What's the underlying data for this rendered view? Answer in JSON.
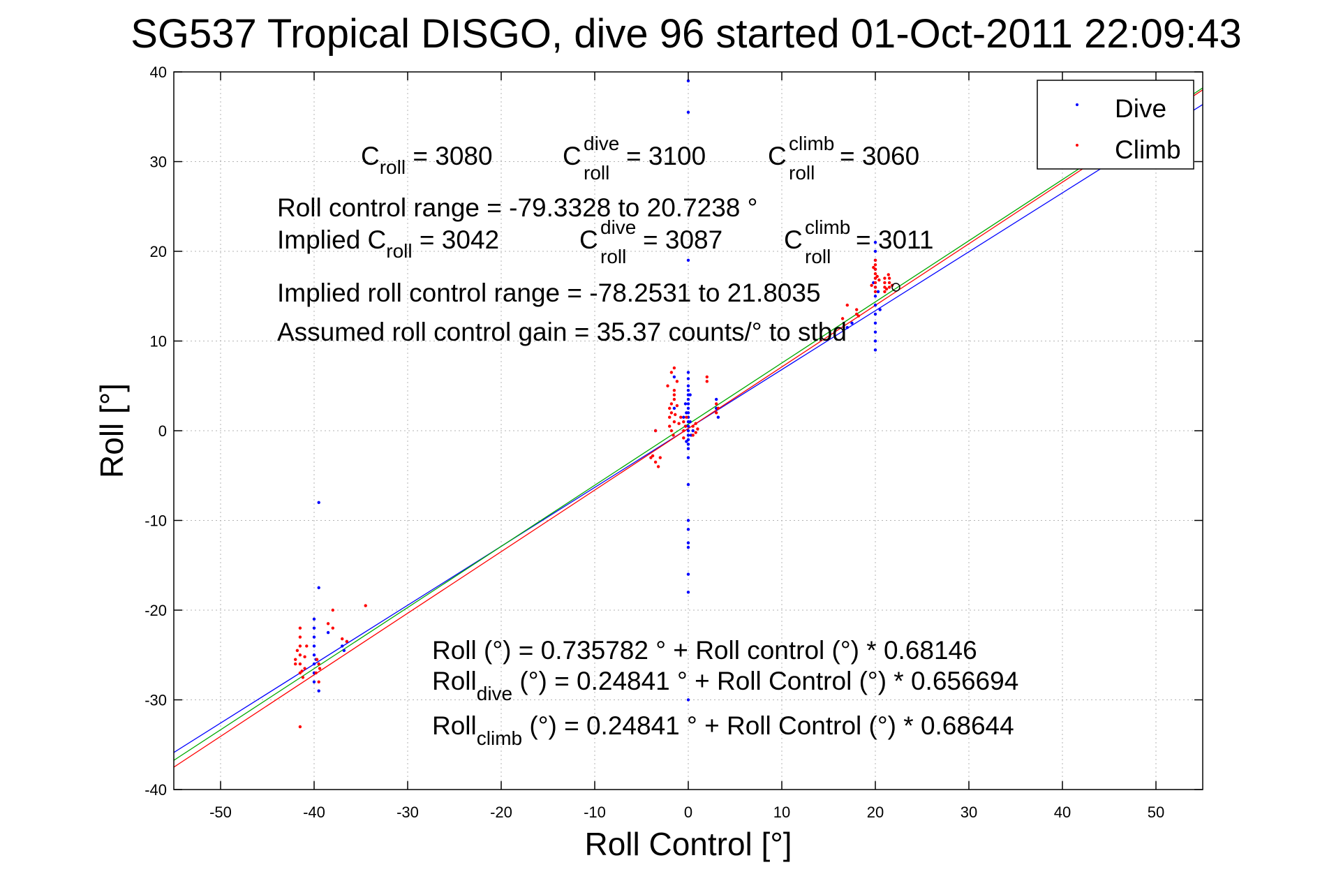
{
  "chart_data": {
    "type": "scatter",
    "title": "SG537 Tropical DISGO, dive 96 started 01-Oct-2011 22:09:43",
    "xlabel": "Roll Control [°]",
    "ylabel": "Roll [°]",
    "xlim": [
      -55,
      55
    ],
    "ylim": [
      -40,
      40
    ],
    "xticks": [
      -50,
      -40,
      -30,
      -20,
      -10,
      0,
      10,
      20,
      30,
      40,
      50
    ],
    "yticks": [
      -40,
      -30,
      -20,
      -10,
      0,
      10,
      20,
      30,
      40
    ],
    "grid": true,
    "legend_position": "top-right",
    "legend": [
      {
        "label": "Dive",
        "color": "#0000ff"
      },
      {
        "label": "Climb",
        "color": "#ff0000"
      }
    ],
    "series": [
      {
        "name": "Dive",
        "color": "#0000ff",
        "points": [
          [
            0,
            39
          ],
          [
            0,
            35.5
          ],
          [
            0,
            19
          ],
          [
            0,
            6.5
          ],
          [
            0,
            5.8
          ],
          [
            0,
            5
          ],
          [
            0,
            4.5
          ],
          [
            0,
            4
          ],
          [
            0,
            3.5
          ],
          [
            0,
            3
          ],
          [
            0,
            2.5
          ],
          [
            0,
            2
          ],
          [
            0,
            1.5
          ],
          [
            0,
            1
          ],
          [
            0,
            0.5
          ],
          [
            0,
            0
          ],
          [
            0,
            -0.5
          ],
          [
            0,
            -1
          ],
          [
            0,
            -1.5
          ],
          [
            0,
            -2
          ],
          [
            0,
            -3
          ],
          [
            0,
            -6
          ],
          [
            0,
            -10
          ],
          [
            0,
            -11
          ],
          [
            0,
            -12.5
          ],
          [
            0,
            -13
          ],
          [
            0,
            -16
          ],
          [
            0,
            -18
          ],
          [
            0,
            -30
          ],
          [
            -0.2,
            2
          ],
          [
            0.2,
            1
          ],
          [
            -0.3,
            0.5
          ],
          [
            0.3,
            -0.5
          ],
          [
            -0.5,
            1.5
          ],
          [
            0.5,
            0
          ],
          [
            -0.3,
            3
          ],
          [
            0.2,
            4
          ],
          [
            -0.2,
            -1.2
          ],
          [
            -1.5,
            6
          ],
          [
            -1.5,
            2.5
          ],
          [
            -3.5,
            0
          ],
          [
            3,
            2.5
          ],
          [
            3.2,
            1.5
          ],
          [
            3,
            3.5
          ],
          [
            20,
            21
          ],
          [
            20,
            20
          ],
          [
            20,
            19
          ],
          [
            20,
            18
          ],
          [
            20,
            17
          ],
          [
            20,
            16
          ],
          [
            20,
            15
          ],
          [
            20,
            14
          ],
          [
            20,
            13
          ],
          [
            20,
            12
          ],
          [
            20,
            11
          ],
          [
            20,
            10
          ],
          [
            20,
            9
          ],
          [
            20.3,
            15.5
          ],
          [
            19.8,
            16.5
          ],
          [
            20.5,
            13.5
          ],
          [
            17,
            11.5
          ],
          [
            17.5,
            12
          ],
          [
            -39.5,
            -8
          ],
          [
            -39.5,
            -17.5
          ],
          [
            -40,
            -21
          ],
          [
            -40,
            -22
          ],
          [
            -40,
            -23
          ],
          [
            -40,
            -24
          ],
          [
            -40,
            -25
          ],
          [
            -40,
            -26
          ],
          [
            -40,
            -27
          ],
          [
            -40,
            -28
          ],
          [
            -39.5,
            -29
          ],
          [
            -39.8,
            -25.5
          ],
          [
            -36.5,
            -23.5
          ],
          [
            -37,
            -24
          ],
          [
            -36.8,
            -24.5
          ],
          [
            -38.5,
            -22.5
          ]
        ]
      },
      {
        "name": "Climb",
        "color": "#ff0000",
        "points": [
          [
            -41.5,
            -22
          ],
          [
            -41.5,
            -23
          ],
          [
            -41.5,
            -24
          ],
          [
            -41.5,
            -25
          ],
          [
            -41.5,
            -26
          ],
          [
            -41.5,
            -27
          ],
          [
            -41.5,
            -33
          ],
          [
            -42,
            -25.5
          ],
          [
            -41,
            -26.5
          ],
          [
            -41.8,
            -24.5
          ],
          [
            -41.2,
            -27.5
          ],
          [
            -41,
            -25.2
          ],
          [
            -42,
            -26
          ],
          [
            -41.3,
            -26.8
          ],
          [
            -40.8,
            -24
          ],
          [
            -39.5,
            -26
          ],
          [
            -39.8,
            -27
          ],
          [
            -39.5,
            -28
          ],
          [
            -39.7,
            -25.5
          ],
          [
            -39.4,
            -26.5
          ],
          [
            -38,
            -20
          ],
          [
            -38,
            -22
          ],
          [
            -38.5,
            -21.5
          ],
          [
            -36.5,
            -23.5
          ],
          [
            -37,
            -23.2
          ],
          [
            -34.5,
            -19.5
          ],
          [
            -1.5,
            7
          ],
          [
            -1.5,
            4
          ],
          [
            -1.8,
            3
          ],
          [
            -2,
            2.5
          ],
          [
            -1.8,
            2
          ],
          [
            -2,
            1.5
          ],
          [
            -1.5,
            1
          ],
          [
            -2,
            0.5
          ],
          [
            -1.8,
            0
          ],
          [
            -1.6,
            -0.5
          ],
          [
            -1.5,
            4.5
          ],
          [
            -2.2,
            5
          ],
          [
            -1.8,
            6.5
          ],
          [
            -1.5,
            3.5
          ],
          [
            -1.2,
            5.5
          ],
          [
            -1.4,
            1.8
          ],
          [
            -1,
            0.8
          ],
          [
            -0.8,
            1.5
          ],
          [
            -1.2,
            2.8
          ],
          [
            -0.5,
            1
          ],
          [
            -0.5,
            0
          ],
          [
            -0.3,
            0.5
          ],
          [
            -0.5,
            -0.8
          ],
          [
            -0.2,
            1.5
          ],
          [
            0.5,
            0.5
          ],
          [
            0.8,
            -0.2
          ],
          [
            1,
            0.2
          ],
          [
            0.5,
            -0.5
          ],
          [
            0.8,
            0.8
          ],
          [
            2,
            6
          ],
          [
            2,
            5.5
          ],
          [
            3,
            2
          ],
          [
            3,
            3
          ],
          [
            3.2,
            2.5
          ],
          [
            -3,
            -3
          ],
          [
            -3.5,
            -3.5
          ],
          [
            -3.2,
            -4
          ],
          [
            -4,
            -3
          ],
          [
            -3.8,
            -2.8
          ],
          [
            -3.5,
            0
          ],
          [
            20,
            19
          ],
          [
            20,
            18.5
          ],
          [
            20,
            18
          ],
          [
            20,
            17.5
          ],
          [
            20,
            17
          ],
          [
            20,
            16.5
          ],
          [
            20,
            16
          ],
          [
            20,
            15.5
          ],
          [
            19.8,
            18.2
          ],
          [
            20.2,
            17.2
          ],
          [
            19.6,
            16.2
          ],
          [
            20.4,
            16.8
          ],
          [
            21,
            17
          ],
          [
            21,
            16.5
          ],
          [
            21,
            16
          ],
          [
            21,
            15.5
          ],
          [
            21.5,
            17
          ],
          [
            21.5,
            16.5
          ],
          [
            21.5,
            16
          ],
          [
            21.2,
            15.8
          ],
          [
            21.8,
            16.2
          ],
          [
            21.4,
            17.4
          ],
          [
            18,
            13
          ],
          [
            18,
            13.5
          ],
          [
            18.2,
            12.8
          ],
          [
            17,
            14
          ],
          [
            16.5,
            12.5
          ]
        ]
      }
    ],
    "fit_lines": [
      {
        "color": "#0000ff",
        "intercept": 0.24841,
        "slope": 0.656694
      },
      {
        "color": "#ff0000",
        "intercept": 0.24841,
        "slope": 0.68644
      },
      {
        "color": "#00aa00",
        "intercept": 0.735782,
        "slope": 0.68146
      }
    ],
    "open_circle_point": [
      22.2,
      16
    ],
    "annotations": {
      "c_roll": {
        "base": "C",
        "sub": "roll",
        "rest": " = 3080"
      },
      "c_dive": {
        "base": "C",
        "sup": "dive",
        "sub": "roll",
        "rest": " = 3100"
      },
      "c_climb": {
        "base": "C",
        "sup": "climb",
        "sub": "roll",
        "rest": " = 3060"
      },
      "range_line": "Roll control range = -79.3328 to 20.7238 °",
      "implied_prefix": "Implied C",
      "implied_sub": "roll",
      "implied_rest": " = 3042",
      "implied_dive": {
        "base": "C",
        "sup": "dive",
        "sub": "roll",
        "rest": " = 3087"
      },
      "implied_climb": {
        "base": "C",
        "sup": "climb",
        "sub": "roll",
        "rest": " = 3011"
      },
      "implied_range_line": "Implied roll control range = -78.2531 to 21.8035",
      "gain_line": "Assumed roll control gain = 35.37 counts/° to stbd",
      "eq_all": "Roll (°) = 0.735782 ° + Roll control (°) * 0.68146",
      "eq_dive": {
        "base": "Roll",
        "sub": "dive",
        "rest": " (°) = 0.24841 ° + Roll Control (°) * 0.656694"
      },
      "eq_climb": {
        "base": "Roll",
        "sub": "climb",
        "rest": " (°) = 0.24841 ° + Roll Control (°) * 0.68644"
      }
    }
  }
}
